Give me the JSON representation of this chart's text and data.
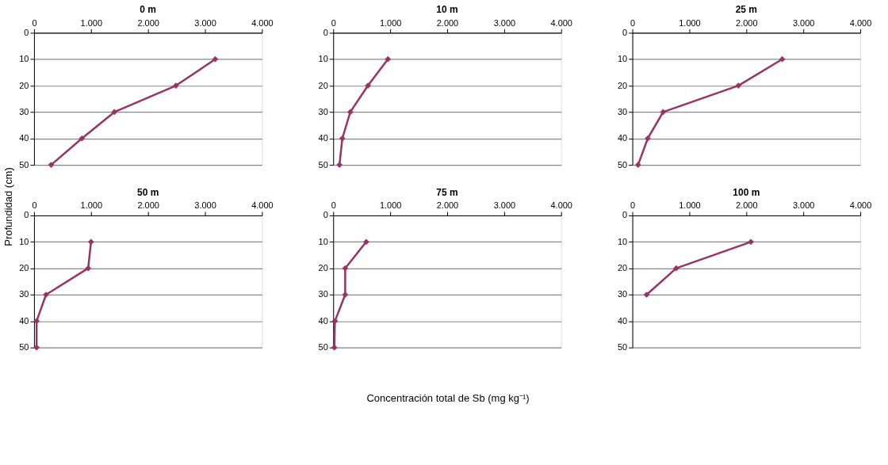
{
  "chart_data": [
    {
      "type": "line",
      "title": "0 m",
      "ylabel": "Profundidad (cm)",
      "x": [
        3180,
        2490,
        1410,
        840,
        300
      ],
      "values": [
        10,
        20,
        30,
        40,
        50
      ],
      "color": "#993366",
      "marker": "diamond",
      "grid": "y",
      "xlim": [
        0,
        4000
      ],
      "ylim": [
        50,
        0
      ],
      "xticks": [
        0,
        {
          "value": 1000,
          "label": "1.000"
        },
        {
          "value": 2000,
          "label": "2.000"
        },
        {
          "value": 3000,
          "label": "3.000"
        },
        {
          "value": 4000,
          "label": "4.000"
        }
      ],
      "yticks": [
        0,
        10,
        20,
        30,
        40,
        50
      ]
    },
    {
      "type": "line",
      "title": "10 m",
      "x": [
        960,
        610,
        300,
        160,
        110
      ],
      "values": [
        10,
        20,
        30,
        40,
        50
      ],
      "color": "#993366",
      "marker": "diamond",
      "grid": "y",
      "xlim": [
        0,
        4000
      ],
      "ylim": [
        50,
        0
      ],
      "xticks": [
        0,
        {
          "value": 1000,
          "label": "1.000"
        },
        {
          "value": 2000,
          "label": "2.000"
        },
        {
          "value": 3000,
          "label": "3.000"
        },
        {
          "value": 4000,
          "label": "4.000"
        }
      ],
      "yticks": [
        0,
        10,
        20,
        30,
        40,
        50
      ]
    },
    {
      "type": "line",
      "title": "25 m",
      "x": [
        2630,
        1860,
        540,
        270,
        100
      ],
      "values": [
        10,
        20,
        30,
        40,
        50
      ],
      "color": "#993366",
      "marker": "diamond",
      "grid": "y",
      "xlim": [
        0,
        4000
      ],
      "ylim": [
        50,
        0
      ],
      "xticks": [
        0,
        {
          "value": 1000,
          "label": "1.000"
        },
        {
          "value": 2000,
          "label": "2.000"
        },
        {
          "value": 3000,
          "label": "3.000"
        },
        {
          "value": 4000,
          "label": "4.000"
        }
      ],
      "yticks": [
        0,
        10,
        20,
        30,
        40,
        50
      ]
    },
    {
      "type": "line",
      "title": "50 m",
      "x": [
        1000,
        950,
        210,
        45,
        45
      ],
      "values": [
        10,
        20,
        30,
        40,
        50
      ],
      "color": "#993366",
      "marker": "diamond",
      "grid": "y",
      "xlim": [
        0,
        4000
      ],
      "ylim": [
        50,
        0
      ],
      "xticks": [
        0,
        {
          "value": 1000,
          "label": "1.000"
        },
        {
          "value": 2000,
          "label": "2.000"
        },
        {
          "value": 3000,
          "label": "3.000"
        },
        {
          "value": 4000,
          "label": "4.000"
        }
      ],
      "yticks": [
        0,
        10,
        20,
        30,
        40,
        50
      ]
    },
    {
      "type": "line",
      "title": "75 m",
      "xlabel": "Concentración total de Sb (mg kg⁻¹)",
      "x": [
        580,
        210,
        210,
        30,
        20
      ],
      "values": [
        10,
        20,
        30,
        40,
        50
      ],
      "color": "#993366",
      "marker": "diamond",
      "grid": "y",
      "xlim": [
        0,
        4000
      ],
      "ylim": [
        50,
        0
      ],
      "xticks": [
        0,
        {
          "value": 1000,
          "label": "1.000"
        },
        {
          "value": 2000,
          "label": "2.000"
        },
        {
          "value": 3000,
          "label": "3.000"
        },
        {
          "value": 4000,
          "label": "4.000"
        }
      ],
      "yticks": [
        0,
        10,
        20,
        30,
        40,
        50
      ]
    },
    {
      "type": "line",
      "title": "100 m",
      "x": [
        2080,
        770,
        250
      ],
      "values": [
        10,
        20,
        30
      ],
      "color": "#993366",
      "marker": "diamond",
      "grid": "y",
      "xlim": [
        0,
        4000
      ],
      "ylim": [
        50,
        0
      ],
      "xticks": [
        0,
        {
          "value": 1000,
          "label": "1.000"
        },
        {
          "value": 2000,
          "label": "2.000"
        },
        {
          "value": 3000,
          "label": "3.000"
        },
        {
          "value": 4000,
          "label": "4.000"
        }
      ],
      "yticks": [
        0,
        10,
        20,
        30,
        40,
        50
      ]
    }
  ]
}
